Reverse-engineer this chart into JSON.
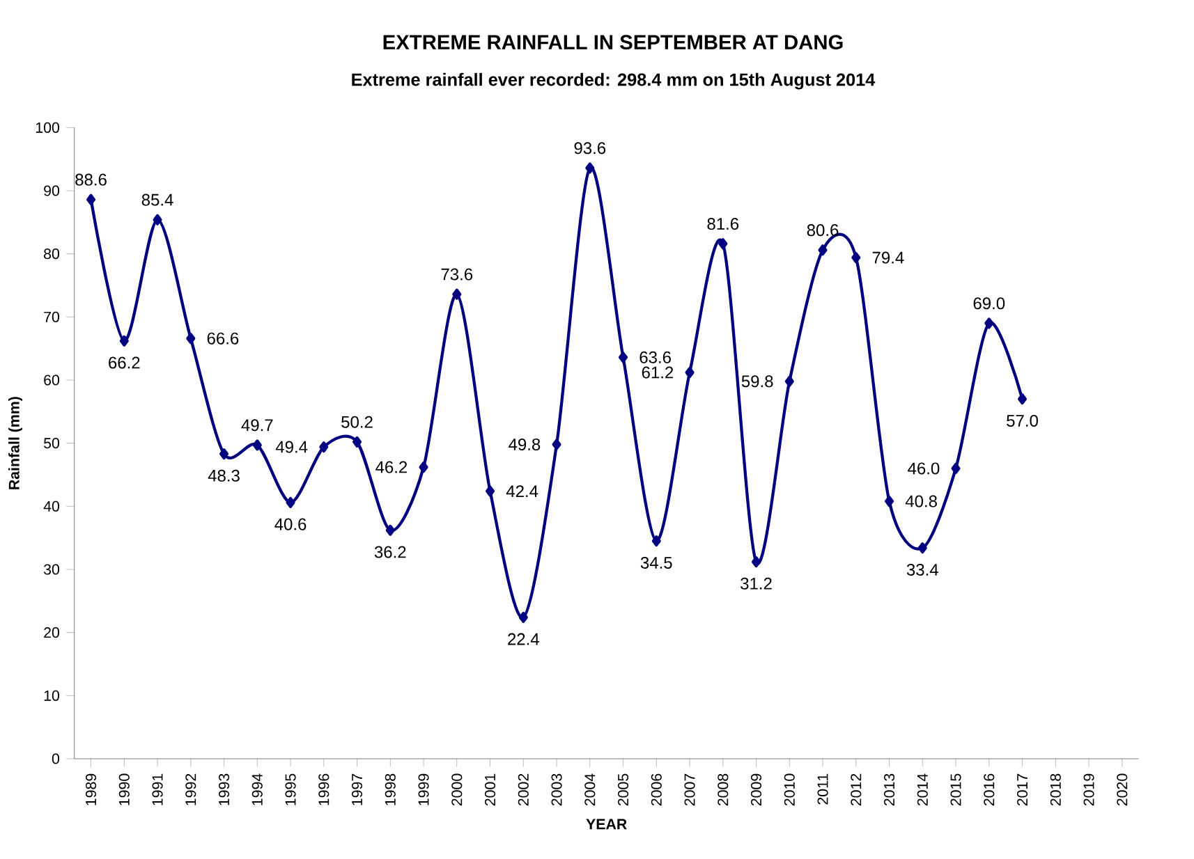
{
  "chart_data": {
    "type": "line",
    "title": "EXTREME RAINFALL IN SEPTEMBER AT DANG",
    "subtitle": "Extreme rainfall ever recorded: 298.4 mm on 15th August 2014",
    "xlabel": "YEAR",
    "ylabel": "Rainfall (mm)",
    "categories": [
      "1989",
      "1990",
      "1991",
      "1992",
      "1993",
      "1994",
      "1995",
      "1996",
      "1997",
      "1998",
      "1999",
      "2000",
      "2001",
      "2002",
      "2003",
      "2004",
      "2005",
      "2006",
      "2007",
      "2008",
      "2009",
      "2010",
      "2011",
      "2012",
      "2013",
      "2014",
      "2015",
      "2016",
      "2017",
      "2018",
      "2019",
      "2020"
    ],
    "series": [
      {
        "color": "#000080",
        "values": [
          88.6,
          66.2,
          85.4,
          66.6,
          48.3,
          49.7,
          40.6,
          49.4,
          50.2,
          36.2,
          46.2,
          73.6,
          42.4,
          22.4,
          49.8,
          93.6,
          63.6,
          34.5,
          61.2,
          81.6,
          31.2,
          59.8,
          80.6,
          79.4,
          40.8,
          33.4,
          46.0,
          69.0,
          57.0,
          null,
          null,
          null
        ],
        "value_labels": [
          "88.6",
          "66.2",
          "85.4",
          "66.6",
          "48.3",
          "49.7",
          "40.6",
          "49.4",
          "50.2",
          "36.2",
          "46.2",
          "73.6",
          "42.4",
          "22.4",
          "49.8",
          "93.6",
          "63.6",
          "34.5",
          "61.2",
          "81.6",
          "31.2",
          "59.8",
          "80.6",
          "79.4",
          "40.8",
          "33.4",
          "46.0",
          "69.0",
          "57.0",
          null,
          null,
          null
        ]
      }
    ],
    "ylim": [
      0,
      100
    ],
    "yticks": [
      0,
      10,
      20,
      30,
      40,
      50,
      60,
      70,
      80,
      90,
      100
    ],
    "grid": false,
    "marker": "diamond",
    "line_style": "solid"
  }
}
